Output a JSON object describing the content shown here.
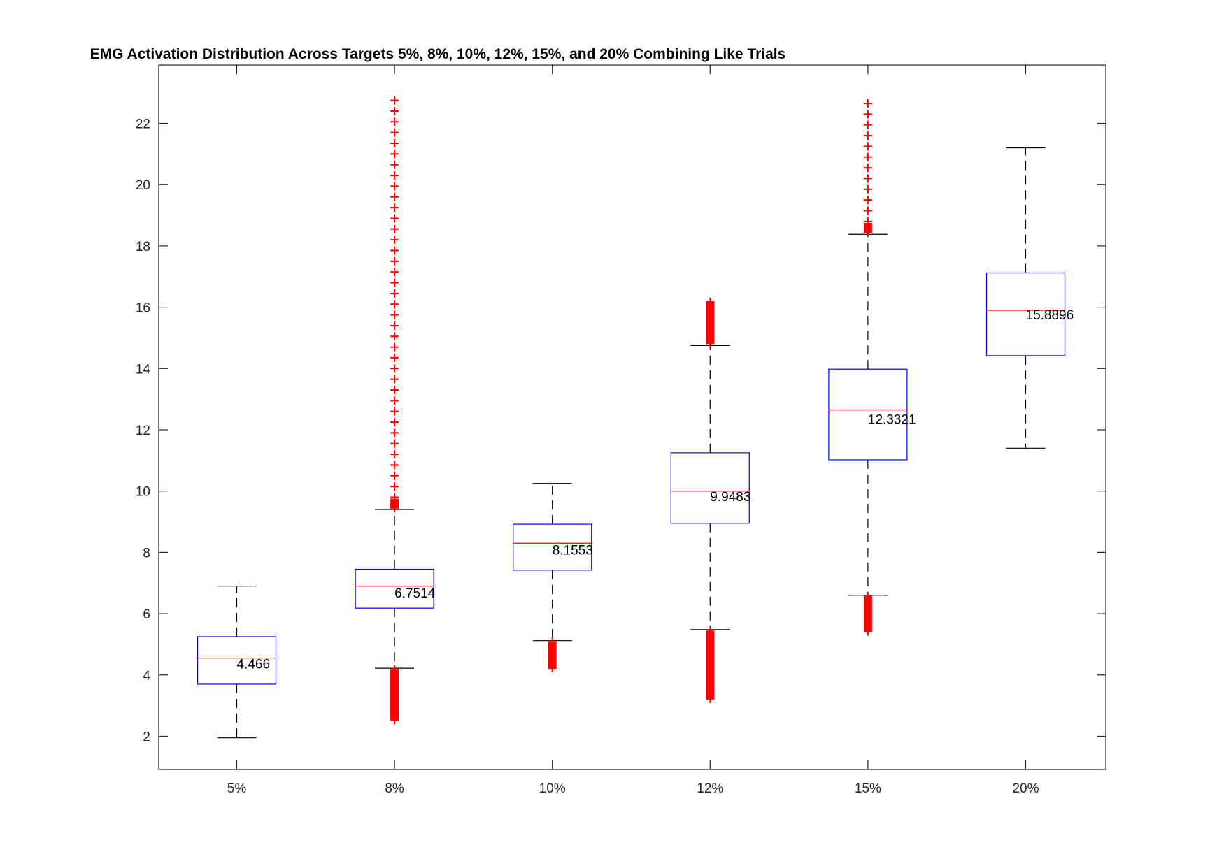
{
  "chart_data": {
    "type": "box",
    "title": "EMG Activation Distribution Across Targets 5%, 8%, 10%, 12%, 15%, and 20% Combining Like Trials",
    "xlabel": "",
    "ylabel": "",
    "categories": [
      "5%",
      "8%",
      "10%",
      "12%",
      "15%",
      "20%"
    ],
    "ylim": [
      0.9,
      23.9
    ],
    "yticks": [
      2,
      4,
      6,
      8,
      10,
      12,
      14,
      16,
      18,
      20,
      22
    ],
    "grid": false,
    "colors": {
      "box": "#0000ff",
      "median": "#ff0000",
      "whisker": "#000000",
      "outlier": "#ff0000"
    },
    "boxes": [
      {
        "category": "5%",
        "whisker_low": 1.95,
        "q1": 3.7,
        "median": 4.55,
        "q3": 5.25,
        "whisker_high": 6.9,
        "label": "4.466",
        "outliers_low": [],
        "outliers_high": []
      },
      {
        "category": "8%",
        "whisker_low": 4.22,
        "q1": 6.18,
        "median": 6.9,
        "q3": 7.45,
        "whisker_high": 9.4,
        "label": "6.7514",
        "outliers_low": [
          2.5,
          4.2
        ],
        "outliers_high": [
          9.45,
          22.8
        ]
      },
      {
        "category": "10%",
        "whisker_low": 5.12,
        "q1": 7.42,
        "median": 8.3,
        "q3": 8.92,
        "whisker_high": 10.25,
        "label": "8.1553",
        "outliers_low": [
          4.2,
          5.1
        ],
        "outliers_high": []
      },
      {
        "category": "12%",
        "whisker_low": 5.48,
        "q1": 8.95,
        "median": 10.0,
        "q3": 11.25,
        "whisker_high": 14.75,
        "label": "9.9483",
        "outliers_low": [
          3.2,
          5.45
        ],
        "outliers_high": [
          14.8,
          16.2
        ]
      },
      {
        "category": "15%",
        "whisker_low": 6.6,
        "q1": 11.02,
        "median": 12.65,
        "q3": 13.98,
        "whisker_high": 18.38,
        "label": "12.3321",
        "outliers_low": [
          5.4,
          6.6
        ],
        "outliers_high": [
          18.45,
          22.8
        ]
      },
      {
        "category": "20%",
        "whisker_low": 11.4,
        "q1": 14.42,
        "median": 15.9,
        "q3": 17.12,
        "whisker_high": 21.2,
        "label": "15.8896",
        "outliers_low": [],
        "outliers_high": []
      }
    ]
  }
}
